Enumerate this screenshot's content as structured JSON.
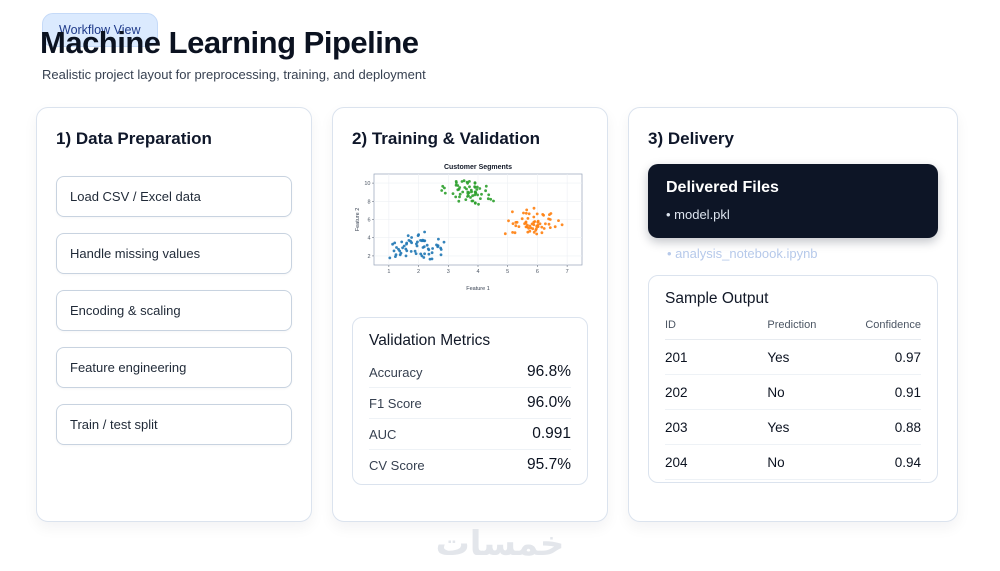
{
  "header": {
    "badge": "Workflow View",
    "title": "Machine Learning Pipeline",
    "subtitle": "Realistic project layout for preprocessing, training, and deployment"
  },
  "cards": {
    "prep": {
      "title": "1) Data Preparation",
      "steps": [
        "Load CSV / Excel data",
        "Handle missing values",
        "Encoding & scaling",
        "Feature engineering",
        "Train / test split"
      ]
    },
    "training": {
      "title": "2) Training & Validation",
      "metrics_title": "Validation Metrics",
      "metrics": [
        {
          "label": "Accuracy",
          "value": "96.8%"
        },
        {
          "label": "F1 Score",
          "value": "96.0%"
        },
        {
          "label": "AUC",
          "value": "0.991"
        },
        {
          "label": "CV Score",
          "value": "95.7%"
        }
      ]
    },
    "delivery": {
      "title": "3) Delivery",
      "files_title": "Delivered Files",
      "files": [
        "• model.pkl"
      ],
      "ghost_file": "• analysis_notebook.ipynb",
      "sample_title": "Sample Output",
      "table": {
        "headers": [
          "ID",
          "Prediction",
          "Confidence"
        ],
        "rows": [
          [
            "201",
            "Yes",
            "0.97"
          ],
          [
            "202",
            "No",
            "0.91"
          ],
          [
            "203",
            "Yes",
            "0.88"
          ],
          [
            "204",
            "No",
            "0.94"
          ]
        ]
      }
    }
  },
  "chart_data": {
    "type": "scatter",
    "title": "Customer Segments",
    "xlabel": "Feature 1",
    "ylabel": "Feature 2",
    "xlim": [
      0.5,
      7.5
    ],
    "ylim": [
      1,
      11
    ],
    "xticks": [
      1,
      2,
      3,
      4,
      5,
      6,
      7
    ],
    "yticks": [
      2,
      4,
      6,
      8,
      10
    ],
    "grid": true,
    "legend": "none",
    "series": [
      {
        "name": "cluster-blue",
        "color": "#1f77b4",
        "center": [
          1.9,
          2.9
        ],
        "spread": 0.55,
        "count": 60
      },
      {
        "name": "cluster-green",
        "color": "#2ca02c",
        "center": [
          3.7,
          9.0
        ],
        "spread": 0.5,
        "count": 60
      },
      {
        "name": "cluster-orange",
        "color": "#ff7f0e",
        "center": [
          5.8,
          5.5
        ],
        "spread": 0.6,
        "count": 60
      }
    ]
  },
  "watermark": "خمسات"
}
